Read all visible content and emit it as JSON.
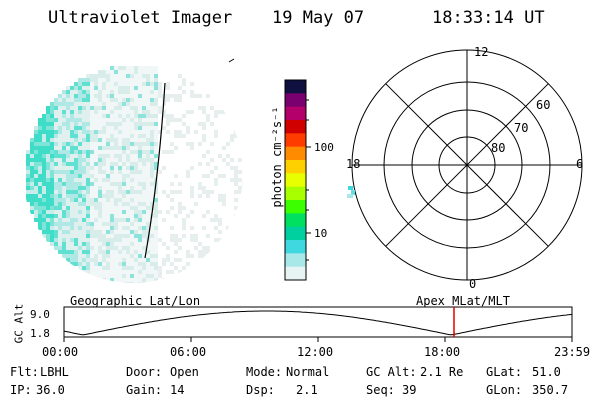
{
  "header": {
    "instrument": "Ultraviolet Imager",
    "date": "19 May 07",
    "time": "18:33:14 UT"
  },
  "colorbar": {
    "unit_label": "photon cm⁻²s⁻¹",
    "ticks": [
      "100",
      "10"
    ],
    "colors": [
      "#101040",
      "#7a0070",
      "#b4006a",
      "#d00000",
      "#ff3c00",
      "#ff8c00",
      "#ffd000",
      "#e7ff00",
      "#a8ff00",
      "#3cff00",
      "#00e060",
      "#00d0a0",
      "#40d8e0",
      "#a8e8e8",
      "#e8f4f4"
    ]
  },
  "polar_plot": {
    "mlt_labels": {
      "top": "12",
      "left": "18",
      "right": "6",
      "bottom": "0"
    },
    "lat_labels": [
      "60",
      "70",
      "80"
    ]
  },
  "timeline": {
    "left_label": "Geographic Lat/Lon",
    "right_label": "Apex MLat/MLT",
    "y_axis_title": "GC Alt",
    "y_ticks": [
      "9.0",
      "1.8"
    ],
    "x_ticks": [
      "00:00",
      "06:00",
      "12:00",
      "18:00",
      "23:59"
    ],
    "current_time_marker": "18:33:14",
    "marker_color": "#e00000"
  },
  "status": {
    "flt_label": "Flt:",
    "flt_value": "LBHL",
    "ip_label": "IP:",
    "ip_value": "36.0",
    "door_label": "Door:",
    "door_value": "Open",
    "gain_label": "Gain:",
    "gain_value": "14",
    "mode_label": "Mode:",
    "mode_value": "Normal",
    "dsp_label": "Dsp:",
    "dsp_value": "2.1",
    "gcalt_label": "GC Alt:",
    "gcalt_value": "2.1 Re",
    "seq_label": "Seq:",
    "seq_value": "39",
    "glat_label": "GLat:",
    "glat_value": "51.0",
    "glon_label": "GLon:",
    "glon_value": "350.7"
  }
}
